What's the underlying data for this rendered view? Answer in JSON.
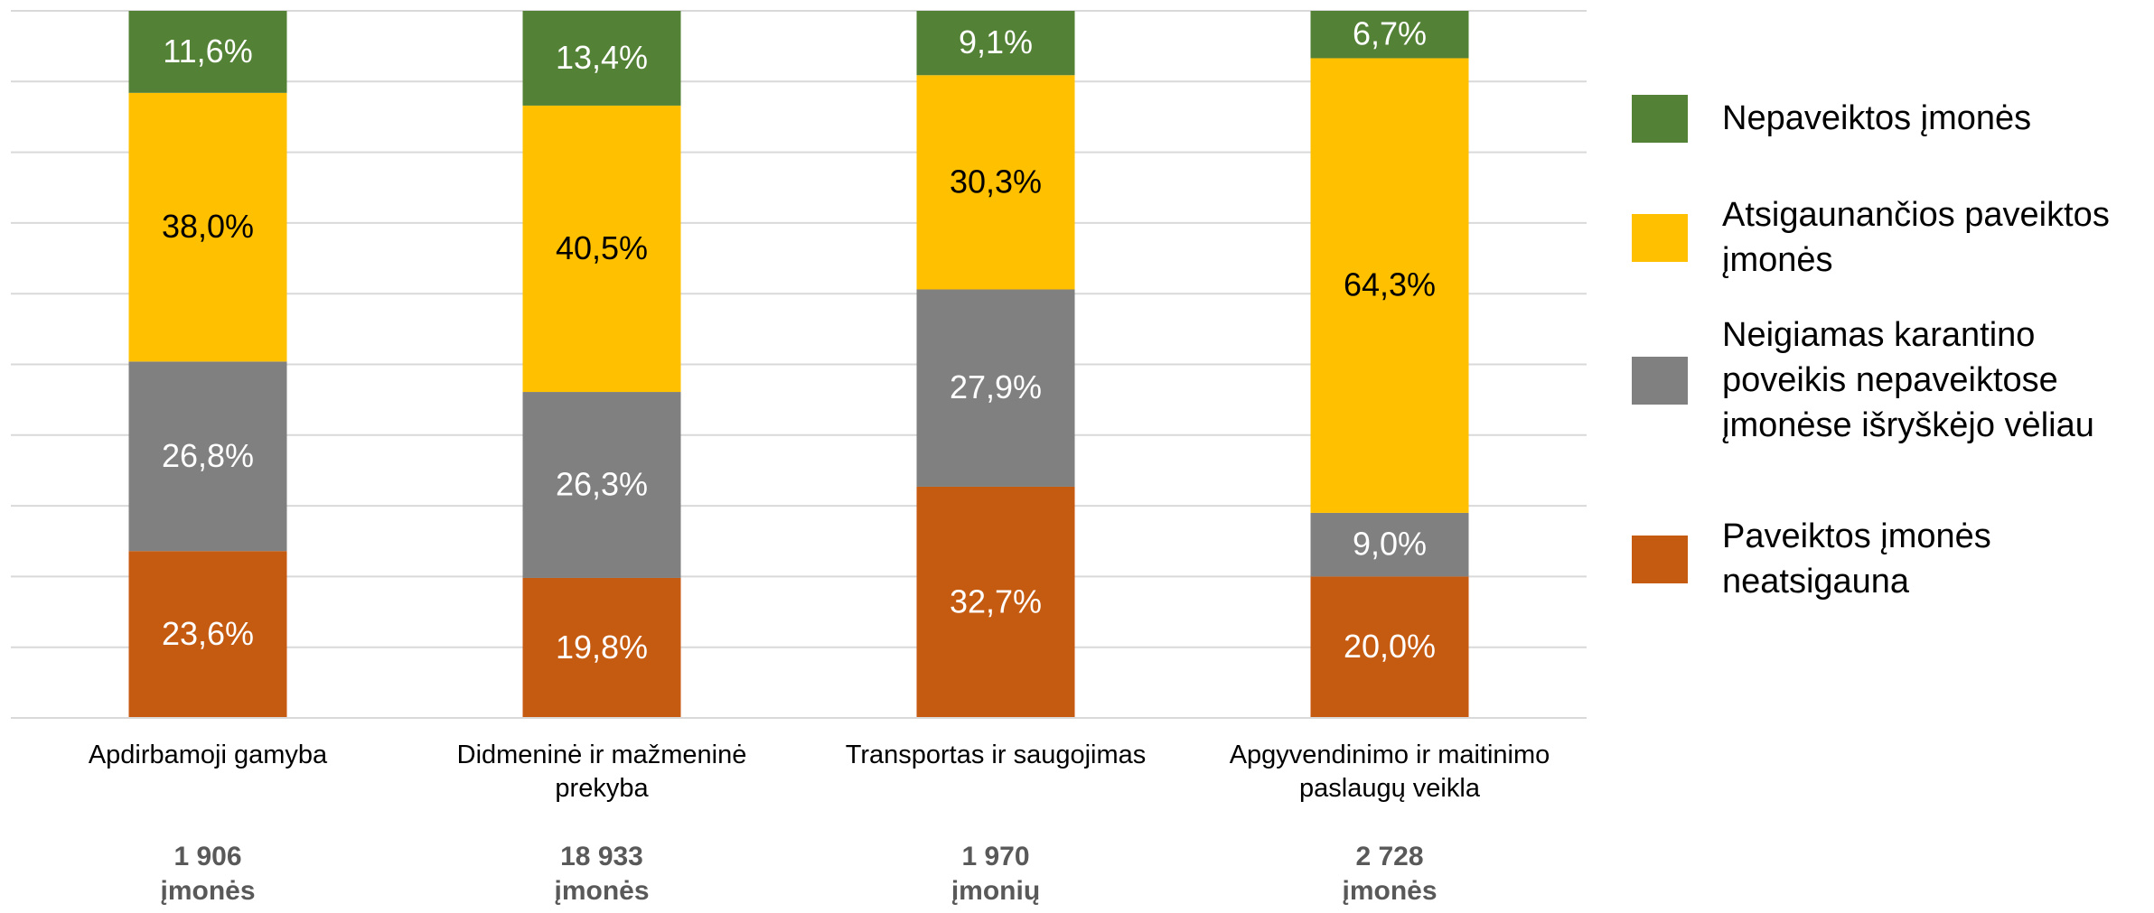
{
  "chart_data": {
    "type": "stacked_bar",
    "categories": [
      "Apdirbamoji gamyba",
      "Didmeninė ir mažmeninė prekyba",
      "Transportas ir saugojimas",
      "Apgyvendinimo ir maitinimo paslaugų veikla"
    ],
    "counts": [
      "1 906",
      "18 933",
      "1 970",
      "2 728"
    ],
    "count_units": [
      "įmonės",
      "įmonės",
      "įmonių",
      "įmonės"
    ],
    "series": [
      {
        "name": "Paveiktos įmonės neatsigauna",
        "color": "#c55a11",
        "label_color": "#ffffff",
        "values": [
          23.6,
          19.8,
          32.7,
          20.0
        ],
        "value_labels": [
          "23,6%",
          "19,8%",
          "32,7%",
          "20,0%"
        ]
      },
      {
        "name": "Neigiamas karantino poveikis nepaveiktose įmonėse išryškėjo vėliau",
        "color": "#808080",
        "label_color": "#ffffff",
        "values": [
          26.8,
          26.3,
          27.9,
          9.0
        ],
        "value_labels": [
          "26,8%",
          "26,3%",
          "27,9%",
          "9,0%"
        ]
      },
      {
        "name": "Atsigaunančios paveiktos įmonės",
        "color": "#ffc000",
        "label_color": "#000000",
        "values": [
          38.0,
          40.5,
          30.3,
          64.3
        ],
        "value_labels": [
          "38,0%",
          "40,5%",
          "30,3%",
          "64,3%"
        ]
      },
      {
        "name": "Nepaveiktos įmonės",
        "color": "#538135",
        "label_color": "#ffffff",
        "values": [
          11.6,
          13.4,
          9.1,
          6.7
        ],
        "value_labels": [
          "11,6%",
          "13,4%",
          "9,1%",
          "6,7%"
        ]
      }
    ],
    "ylim": [
      0,
      100
    ],
    "yticks": [
      0,
      10,
      20,
      30,
      40,
      50,
      60,
      70,
      80,
      90,
      100
    ],
    "grid": true,
    "legend": "right"
  }
}
